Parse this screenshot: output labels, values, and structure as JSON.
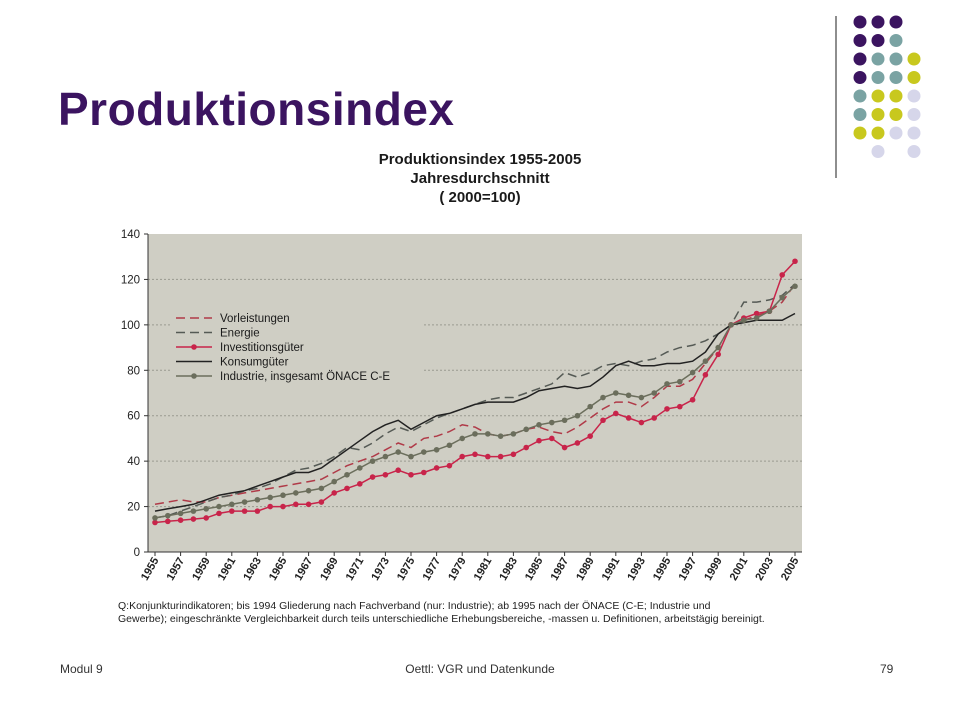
{
  "slide": {
    "title": "Produktionsindex",
    "footer_left": "Modul 9",
    "footer_center": "Oettl: VGR und Datenkunde",
    "footer_right": "79"
  },
  "colors": {
    "title": "#3b1460",
    "dot_purple": "#3b1460",
    "dot_teal": "#7aa3a3",
    "dot_yellow": "#c8c81e",
    "dot_lavender": "#d6d6ea",
    "plot_bg": "#cfcec4"
  },
  "chart_data": {
    "type": "line",
    "title": "Produktionsindex 1955-2005",
    "subtitle_lines": [
      "Jahresdurchschnitt",
      "( 2000=100)"
    ],
    "xlabel": "",
    "ylabel": "",
    "ylim": [
      0,
      140
    ],
    "yticks": [
      0,
      20,
      40,
      60,
      80,
      100,
      120,
      140
    ],
    "xticks": [
      "1955",
      "1957",
      "1959",
      "1961",
      "1963",
      "1965",
      "1967",
      "1969",
      "1971",
      "1973",
      "1975",
      "1977",
      "1979",
      "1981",
      "1983",
      "1985",
      "1987",
      "1989",
      "1991",
      "1993",
      "1995",
      "1997",
      "1999",
      "2001",
      "2003",
      "2005"
    ],
    "grid": "horizontal",
    "legend_position": "upper-left",
    "x": [
      1955,
      1956,
      1957,
      1958,
      1959,
      1960,
      1961,
      1962,
      1963,
      1964,
      1965,
      1966,
      1967,
      1968,
      1969,
      1970,
      1971,
      1972,
      1973,
      1974,
      1975,
      1976,
      1977,
      1978,
      1979,
      1980,
      1981,
      1982,
      1983,
      1984,
      1985,
      1986,
      1987,
      1988,
      1989,
      1990,
      1991,
      1992,
      1993,
      1994,
      1995,
      1996,
      1997,
      1998,
      1999,
      2000,
      2001,
      2002,
      2003,
      2004,
      2005
    ],
    "series": [
      {
        "name": "Vorleistungen",
        "color": "#b03a48",
        "style": "dashed",
        "values": [
          21,
          22,
          23,
          22,
          22,
          24,
          25,
          26,
          27,
          28,
          29,
          30,
          31,
          32,
          35,
          38,
          40,
          42,
          45,
          48,
          46,
          50,
          51,
          53,
          56,
          55,
          52,
          51,
          52,
          54,
          55,
          53,
          52,
          55,
          59,
          63,
          66,
          66,
          64,
          68,
          73,
          73,
          76,
          83,
          90,
          100,
          102,
          104,
          106,
          110,
          118
        ]
      },
      {
        "name": "Energie",
        "color": "#555a55",
        "style": "dashed",
        "values": [
          15,
          16,
          18,
          20,
          22,
          24,
          25,
          27,
          28,
          30,
          33,
          36,
          37,
          39,
          42,
          46,
          45,
          48,
          52,
          55,
          53,
          56,
          59,
          61,
          63,
          65,
          67,
          68,
          68,
          70,
          72,
          74,
          79,
          77,
          79,
          82,
          83,
          82,
          84,
          85,
          88,
          90,
          91,
          93,
          96,
          100,
          110,
          110,
          111,
          113,
          118
        ]
      },
      {
        "name": "Investitionsgüter",
        "color": "#c8244a",
        "style": "solid-markers",
        "values": [
          13,
          13.5,
          14,
          14.5,
          15,
          17,
          18,
          18,
          18,
          20,
          20,
          21,
          21,
          22,
          26,
          28,
          30,
          33,
          34,
          36,
          34,
          35,
          37,
          38,
          42,
          43,
          42,
          42,
          43,
          46,
          49,
          50,
          46,
          48,
          51,
          58,
          61,
          59,
          57,
          59,
          63,
          64,
          67,
          78,
          87,
          100,
          103,
          105,
          106,
          122,
          128
        ]
      },
      {
        "name": "Konsumgüter",
        "color": "#222222",
        "style": "solid",
        "values": [
          18,
          19,
          20,
          21,
          23,
          25,
          26,
          27,
          29,
          31,
          33,
          35,
          35,
          37,
          41,
          45,
          49,
          53,
          56,
          58,
          54,
          57,
          60,
          61,
          63,
          65,
          66,
          66,
          66,
          68,
          71,
          72,
          73,
          72,
          73,
          77,
          82,
          84,
          82,
          82,
          83,
          83,
          84,
          88,
          96,
          100,
          101,
          102,
          102,
          102,
          105
        ]
      },
      {
        "name": "Industrie, insgesamt ÖNACE C-E",
        "color": "#6b6e5c",
        "style": "solid-markers",
        "values": [
          15,
          16,
          17,
          18,
          19,
          20,
          21,
          22,
          23,
          24,
          25,
          26,
          27,
          28,
          31,
          34,
          37,
          40,
          42,
          44,
          42,
          44,
          45,
          47,
          50,
          52,
          52,
          51,
          52,
          54,
          56,
          57,
          58,
          60,
          64,
          68,
          70,
          69,
          68,
          70,
          74,
          75,
          79,
          84,
          90,
          100,
          102,
          103,
          106,
          112,
          117
        ]
      }
    ]
  },
  "source_note_lines": [
    "Q:Konjunkturindikatoren; bis 1994 Gliederung nach Fachverband (nur: Industrie); ab 1995 nach der ÖNACE (C-E; Industrie und",
    "Gewerbe); eingeschränkte Vergleichbarkeit durch teils unterschiedliche Erhebungsbereiche, -massen u. Definitionen, arbeitstägig bereinigt."
  ]
}
